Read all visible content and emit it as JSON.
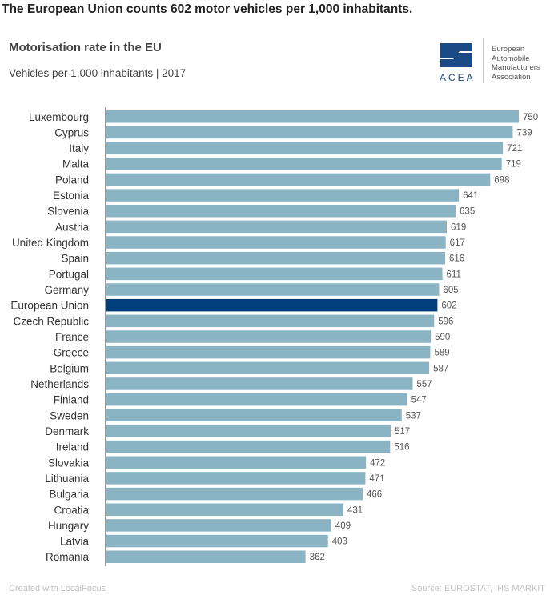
{
  "headline": "The European Union counts 602 motor vehicles per 1,000 inhabitants.",
  "logo": {
    "acronym": "ACEA",
    "org_lines": [
      "European",
      "Automobile",
      "Manufacturers",
      "Association"
    ]
  },
  "footer": {
    "credit": "Created with LocalFocus",
    "source": "Source: EUROSTAT, IHS MARKIT"
  },
  "colors": {
    "bar": "#8ab4c4",
    "highlight_bar": "#003f7a",
    "axis": "#333333"
  },
  "chart_data": {
    "type": "bar",
    "orientation": "horizontal",
    "title": "Motorisation rate in the EU",
    "subtitle": "Vehicles per 1,000 inhabitants | 2017",
    "categories": [
      "Luxembourg",
      "Cyprus",
      "Italy",
      "Malta",
      "Poland",
      "Estonia",
      "Slovenia",
      "Austria",
      "United Kingdom",
      "Spain",
      "Portugal",
      "Germany",
      "European Union",
      "Czech Republic",
      "France",
      "Greece",
      "Belgium",
      "Netherlands",
      "Finland",
      "Sweden",
      "Denmark",
      "Ireland",
      "Slovakia",
      "Lithuania",
      "Bulgaria",
      "Croatia",
      "Hungary",
      "Latvia",
      "Romania"
    ],
    "values": [
      750,
      739,
      721,
      719,
      698,
      641,
      635,
      619,
      617,
      616,
      611,
      605,
      602,
      596,
      590,
      589,
      587,
      557,
      547,
      537,
      517,
      516,
      472,
      471,
      466,
      431,
      409,
      403,
      362
    ],
    "highlight": "European Union",
    "xlim": [
      0,
      750
    ],
    "grid": false,
    "legend": "none"
  }
}
